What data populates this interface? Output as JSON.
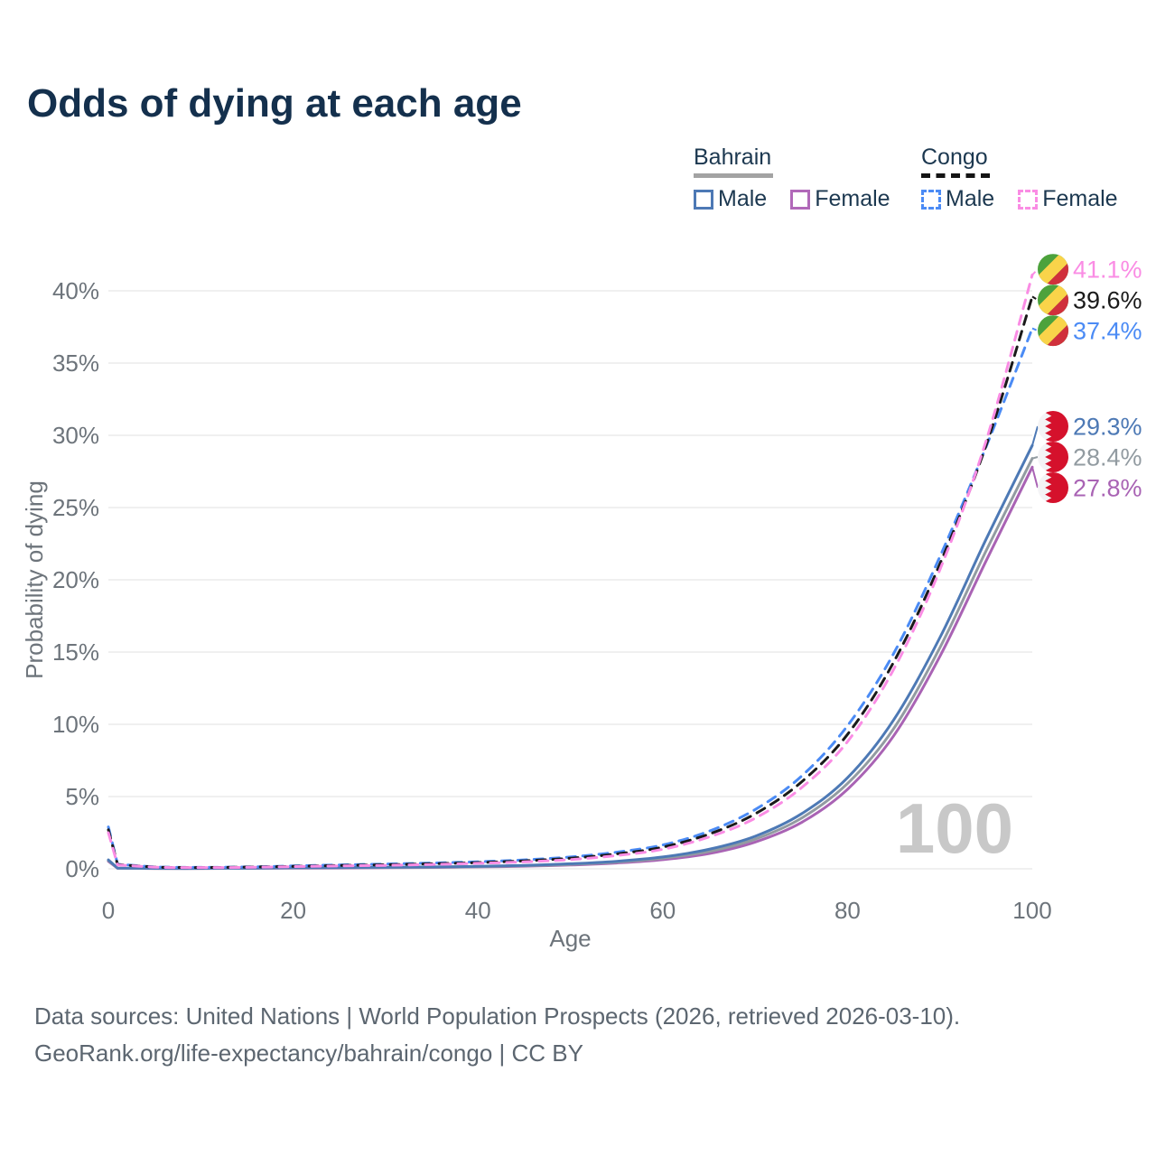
{
  "title": "Odds of dying at each age",
  "legend": {
    "groups": [
      {
        "label": "Bahrain",
        "dash": false,
        "underline_color": "#a3a3a3",
        "items": [
          {
            "label": "Male",
            "color": "#4d79b5"
          },
          {
            "label": "Female",
            "color": "#b169b9"
          }
        ]
      },
      {
        "label": "Congo",
        "dash": true,
        "underline_color": "#141414",
        "items": [
          {
            "label": "Male",
            "color": "#4b8bf5"
          },
          {
            "label": "Female",
            "color": "#fa8ce4"
          }
        ]
      }
    ]
  },
  "chart_data": {
    "type": "line",
    "title": "Odds of dying at each age",
    "xlabel": "Age",
    "ylabel": "Probability of dying",
    "x": [
      0,
      1,
      5,
      10,
      15,
      20,
      25,
      30,
      35,
      40,
      45,
      50,
      55,
      60,
      65,
      70,
      75,
      80,
      85,
      90,
      95,
      100
    ],
    "xticks": [
      0,
      20,
      40,
      60,
      80,
      100
    ],
    "yticks": [
      0,
      5,
      10,
      15,
      20,
      25,
      30,
      35,
      40
    ],
    "xlim": [
      0,
      100
    ],
    "ylim": [
      0,
      42
    ],
    "grid": "horizontal",
    "unit": "%",
    "hovered_age": "100",
    "series": [
      {
        "name": "Congo Female",
        "country": "congo",
        "sex": "female",
        "color": "#fa8ce4",
        "dash": true,
        "end_label": "41.1%",
        "values": [
          2.5,
          0.27,
          0.11,
          0.085,
          0.1,
          0.15,
          0.2,
          0.24,
          0.3,
          0.38,
          0.48,
          0.64,
          0.92,
          1.35,
          2.2,
          3.5,
          5.6,
          8.8,
          13.8,
          20.7,
          29.6,
          41.1
        ]
      },
      {
        "name": "Congo Both sexes",
        "country": "congo",
        "sex": "both",
        "color": "#1a1a1a",
        "dash": true,
        "end_label": "39.6%",
        "values": [
          2.7,
          0.29,
          0.12,
          0.09,
          0.12,
          0.17,
          0.23,
          0.28,
          0.35,
          0.43,
          0.55,
          0.73,
          1.03,
          1.5,
          2.4,
          3.8,
          6.0,
          9.3,
          14.3,
          21.1,
          29.3,
          39.6
        ]
      },
      {
        "name": "Congo Male",
        "country": "congo",
        "sex": "male",
        "color": "#4b8bf5",
        "dash": true,
        "end_label": "37.4%",
        "values": [
          2.9,
          0.31,
          0.13,
          0.1,
          0.13,
          0.2,
          0.27,
          0.33,
          0.4,
          0.49,
          0.62,
          0.82,
          1.15,
          1.65,
          2.6,
          4.1,
          6.4,
          9.9,
          14.9,
          21.6,
          29.2,
          37.4
        ]
      },
      {
        "name": "Bahrain Male",
        "country": "bahrain",
        "sex": "male",
        "color": "#4d79b5",
        "dash": false,
        "end_label": "29.3%",
        "values": [
          0.62,
          0.05,
          0.03,
          0.03,
          0.05,
          0.08,
          0.09,
          0.11,
          0.13,
          0.17,
          0.24,
          0.35,
          0.52,
          0.82,
          1.35,
          2.25,
          3.8,
          6.3,
          10.3,
          16.0,
          22.8,
          29.3
        ]
      },
      {
        "name": "Bahrain Both sexes",
        "country": "bahrain",
        "sex": "both",
        "color": "#929good",
        "dash": false,
        "end_label": "28.4%",
        "values": [
          0.57,
          0.045,
          0.027,
          0.027,
          0.04,
          0.06,
          0.075,
          0.095,
          0.115,
          0.15,
          0.21,
          0.3,
          0.46,
          0.73,
          1.2,
          2.05,
          3.5,
          5.9,
          9.7,
          15.3,
          22.0,
          28.4
        ]
      },
      {
        "name": "Bahrain Female",
        "country": "bahrain",
        "sex": "female",
        "color": "#a963b4",
        "dash": false,
        "end_label": "27.8%",
        "values": [
          0.52,
          0.04,
          0.024,
          0.022,
          0.033,
          0.045,
          0.055,
          0.075,
          0.095,
          0.13,
          0.18,
          0.26,
          0.4,
          0.63,
          1.05,
          1.85,
          3.2,
          5.5,
          9.2,
          14.7,
          21.3,
          27.8
        ]
      }
    ],
    "flag_colors": {
      "congo": {
        "green": "#4ca23c",
        "yellow": "#f9d44a",
        "red": "#d0303c"
      },
      "bahrain": {
        "white": "#f4f4f6",
        "red": "#d5112c"
      }
    }
  },
  "watermark": "100",
  "footer": {
    "line1": "Data sources: United Nations | World Population Prospects (2026, retrieved 2026-03-10).",
    "line2": "GeoRank.org/life-expectancy/bahrain/congo | CC BY"
  }
}
